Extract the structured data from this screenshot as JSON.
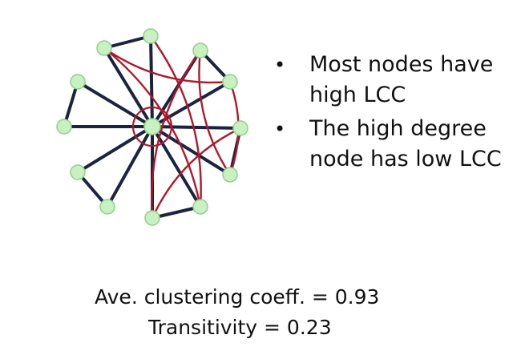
{
  "bullets": [
    "Most nodes have high LCC",
    "The high degree node has low LCC"
  ],
  "stats": {
    "avg_clustering": "Ave. clustering coeff. = 0.93",
    "transitivity": "Transitivity = 0.23"
  },
  "graph": {
    "node_color": "#c8f0c0",
    "node_stroke": "#8fd08a",
    "spoke_color": "#1a2340",
    "cross_color": "#b0182a"
  }
}
